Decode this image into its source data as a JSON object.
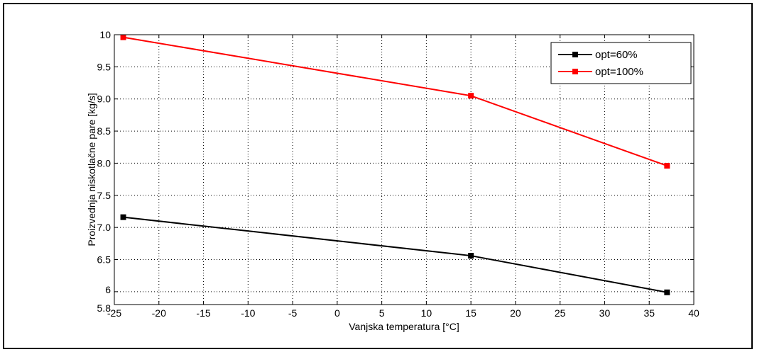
{
  "chart_data": {
    "type": "line",
    "xlabel": "Vanjska temperatura [°C]",
    "ylabel": "Proizvednja niskotlačne pare [kg/s]",
    "xlim": [
      -25,
      40
    ],
    "ylim": [
      5.8,
      10
    ],
    "x_ticks": [
      "-25",
      "-20",
      "-15",
      "-10",
      "-5",
      "0",
      "5",
      "10",
      "15",
      "20",
      "25",
      "30",
      "35",
      "40"
    ],
    "y_ticks": [
      "5.8",
      "6",
      "6.5",
      "7.0",
      "7.5",
      "8.0",
      "8.5",
      "9.0",
      "9.5",
      "10"
    ],
    "y_tick_values": [
      5.8,
      6,
      6.5,
      7.0,
      7.5,
      8.0,
      8.5,
      9.0,
      9.5,
      10
    ],
    "grid": true,
    "legend_position": "top-right",
    "series": [
      {
        "name": "opt=60%",
        "color": "#000000",
        "x": [
          -24,
          15,
          37
        ],
        "y": [
          7.16,
          6.56,
          5.99
        ]
      },
      {
        "name": "opt=100%",
        "color": "#ff0000",
        "x": [
          -24,
          15,
          37
        ],
        "y": [
          9.96,
          9.05,
          7.96
        ]
      }
    ]
  }
}
